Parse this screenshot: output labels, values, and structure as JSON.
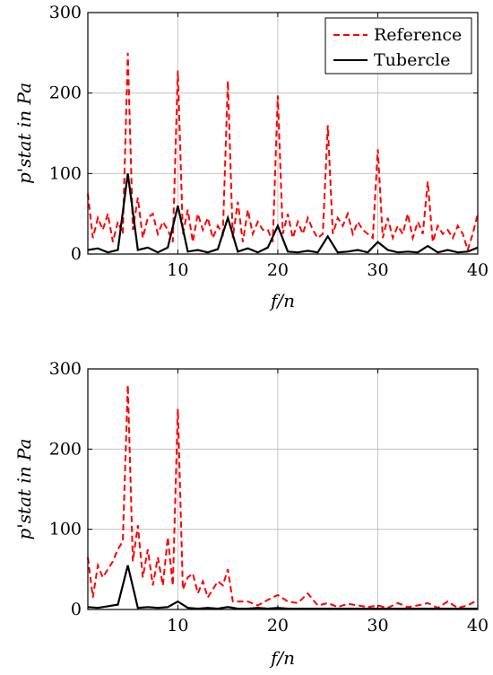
{
  "chart_data": [
    {
      "type": "line",
      "xlabel": "f/n",
      "ylabel": "p'stat in Pa",
      "xlim": [
        1,
        40
      ],
      "ylim": [
        0,
        300
      ],
      "xticks": [
        10,
        20,
        30,
        40
      ],
      "yticks": [
        0,
        100,
        200,
        300
      ],
      "grid": true,
      "legend": "top-right",
      "series": [
        {
          "name": "Reference",
          "color": "#ff0000",
          "style": "dashed",
          "x": [
            1,
            1.5,
            2,
            2.5,
            3,
            3.5,
            4,
            4.5,
            5,
            5.5,
            6,
            6.5,
            7,
            7.5,
            8,
            8.5,
            9,
            9.5,
            10,
            10.5,
            11,
            11.5,
            12,
            12.5,
            13,
            13.5,
            14,
            14.5,
            15,
            15.5,
            16,
            16.5,
            17,
            17.5,
            18,
            18.5,
            19,
            19.5,
            20,
            20.5,
            21,
            21.5,
            22,
            22.5,
            23,
            23.5,
            24,
            24.5,
            25,
            25.5,
            26,
            26.5,
            27,
            27.5,
            28,
            28.5,
            29,
            29.5,
            30,
            30.5,
            31,
            31.5,
            32,
            32.5,
            33,
            33.5,
            34,
            34.5,
            35,
            35.5,
            36,
            36.5,
            37,
            37.5,
            38,
            38.5,
            39,
            39.5,
            40
          ],
          "y": [
            75,
            20,
            45,
            30,
            50,
            15,
            40,
            25,
            250,
            30,
            70,
            20,
            45,
            50,
            25,
            40,
            30,
            15,
            228,
            25,
            55,
            15,
            50,
            30,
            45,
            20,
            35,
            25,
            215,
            20,
            65,
            15,
            55,
            25,
            40,
            30,
            30,
            15,
            197,
            25,
            50,
            20,
            40,
            25,
            45,
            30,
            20,
            25,
            160,
            25,
            45,
            35,
            50,
            25,
            40,
            30,
            25,
            20,
            130,
            20,
            45,
            20,
            35,
            25,
            50,
            20,
            40,
            25,
            90,
            15,
            35,
            25,
            30,
            20,
            35,
            25,
            5,
            25,
            50
          ]
        },
        {
          "name": "Tubercle",
          "color": "#000000",
          "style": "solid",
          "x": [
            1,
            2,
            3,
            4,
            5,
            6,
            7,
            8,
            9,
            10,
            11,
            12,
            13,
            14,
            15,
            16,
            17,
            18,
            19,
            20,
            21,
            22,
            23,
            24,
            25,
            26,
            27,
            28,
            29,
            30,
            31,
            32,
            33,
            34,
            35,
            36,
            37,
            38,
            39,
            40
          ],
          "y": [
            5,
            7,
            2,
            5,
            100,
            5,
            8,
            2,
            8,
            60,
            3,
            5,
            2,
            6,
            45,
            3,
            7,
            2,
            8,
            35,
            3,
            2,
            4,
            2,
            22,
            2,
            3,
            5,
            2,
            15,
            5,
            2,
            3,
            2,
            10,
            2,
            5,
            2,
            3,
            8
          ]
        }
      ]
    },
    {
      "type": "line",
      "xlabel": "f/n",
      "ylabel": "p'stat in Pa",
      "xlim": [
        1,
        40
      ],
      "ylim": [
        0,
        300
      ],
      "xticks": [
        10,
        20,
        30,
        40
      ],
      "yticks": [
        0,
        100,
        200,
        300
      ],
      "grid": true,
      "legend": "none",
      "series": [
        {
          "color": "#ff0000",
          "style": "dashed",
          "x": [
            1,
            1.5,
            2,
            2.5,
            3,
            3.5,
            4,
            4.5,
            5,
            5.5,
            6,
            6.5,
            7,
            7.5,
            8,
            8.5,
            9,
            9.5,
            10,
            10.5,
            11,
            11.5,
            12,
            12.5,
            13,
            13.5,
            14,
            14.5,
            15,
            15.5,
            16,
            17,
            18,
            19,
            20,
            21,
            22,
            23,
            24,
            25,
            26,
            27,
            28,
            29,
            30,
            31,
            32,
            33,
            34,
            35,
            36,
            37,
            38,
            39,
            40
          ],
          "y": [
            65,
            15,
            55,
            40,
            50,
            60,
            75,
            85,
            280,
            60,
            105,
            40,
            75,
            30,
            65,
            30,
            90,
            30,
            250,
            25,
            40,
            45,
            20,
            35,
            15,
            25,
            35,
            30,
            50,
            10,
            10,
            10,
            5,
            12,
            18,
            10,
            8,
            20,
            5,
            8,
            3,
            7,
            5,
            3,
            5,
            2,
            8,
            3,
            5,
            8,
            2,
            10,
            2,
            5,
            12
          ]
        },
        {
          "color": "#000000",
          "style": "solid",
          "x": [
            1,
            2,
            3,
            4,
            5,
            6,
            7,
            8,
            9,
            10,
            11,
            12,
            13,
            14,
            15,
            16,
            17,
            18,
            19,
            20,
            21,
            22,
            23,
            24,
            25,
            26,
            27,
            28,
            29,
            30,
            31,
            32,
            33,
            34,
            35,
            36,
            37,
            38,
            39,
            40
          ],
          "y": [
            3,
            2,
            4,
            6,
            55,
            2,
            3,
            2,
            3,
            10,
            2,
            1,
            2,
            1,
            3,
            1,
            1,
            2,
            1,
            2,
            1,
            1,
            1,
            1,
            1,
            1,
            1,
            1,
            1,
            1,
            1,
            1,
            1,
            1,
            1,
            1,
            1,
            1,
            1,
            1
          ]
        }
      ]
    }
  ],
  "legend_labels": [
    "Reference",
    "Tubercle"
  ]
}
